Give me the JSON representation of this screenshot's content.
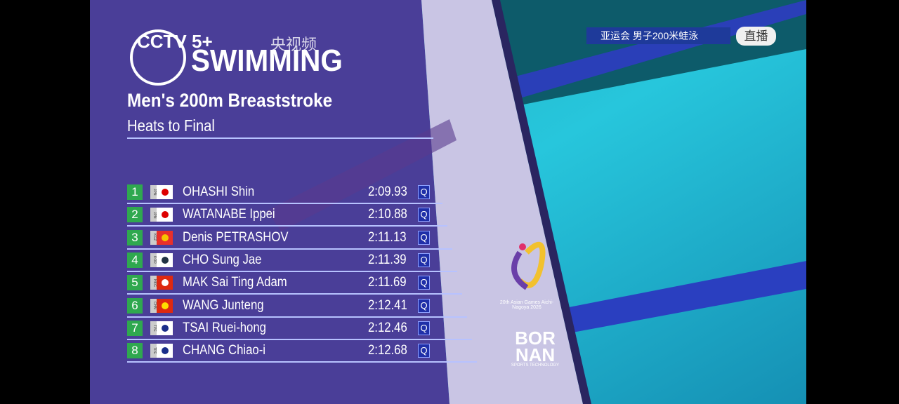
{
  "broadcast": {
    "channel": "CCTV 5+",
    "app": "央视频",
    "event_tag": "亚运会 男子200米蛙泳",
    "live": "直播"
  },
  "header": {
    "sport": "SWIMMING",
    "title": "Men's 200m Breaststroke",
    "subtitle": "Heats to Final"
  },
  "table": {
    "rows": [
      [
        "1",
        "JPN",
        "OHASHI Shin",
        "2:09.93",
        "Q"
      ],
      [
        "2",
        "JPN",
        "WATANABE Ippei",
        "2:10.88",
        "Q"
      ],
      [
        "3",
        "KGZ",
        "Denis PETRASHOV",
        "2:11.13",
        "Q"
      ],
      [
        "4",
        "KOR",
        "CHO Sung Jae",
        "2:11.39",
        "Q"
      ],
      [
        "5",
        "HKG",
        "MAK Sai Ting Adam",
        "2:11.69",
        "Q"
      ],
      [
        "6",
        "CHN",
        "WANG Junteng",
        "2:12.41",
        "Q"
      ],
      [
        "7",
        "TPE",
        "TSAI Ruei-hong",
        "2:12.46",
        "Q"
      ],
      [
        "8",
        "TPE",
        "CHANG Chiao-i",
        "2:12.68",
        "Q"
      ]
    ]
  },
  "sponsor": {
    "games": "20th Asian Games Aichi-Nagoya 2026",
    "brand": "BOR NAN",
    "brand_sub": "SPORTS TECHNOLOGY"
  }
}
